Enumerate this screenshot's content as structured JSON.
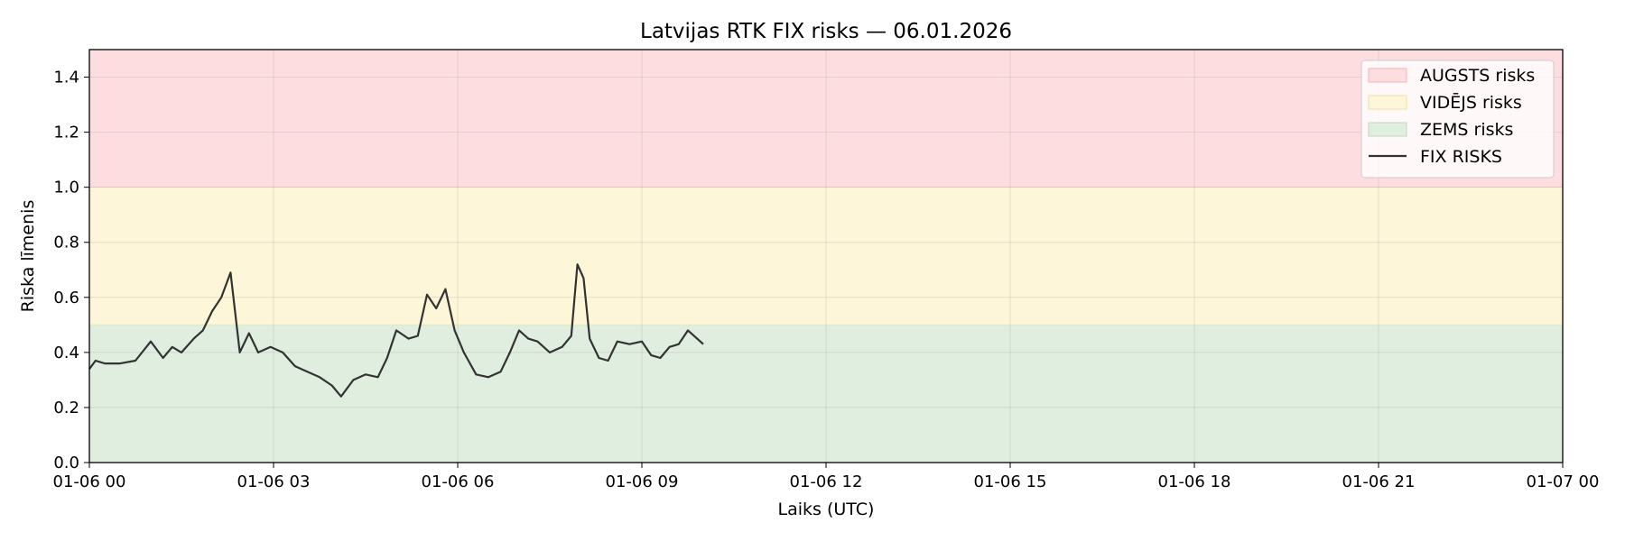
{
  "chart_data": {
    "type": "area",
    "title": "Latvijas RTK FIX risks — 06.01.2026",
    "xlabel": "Laiks (UTC)",
    "ylabel": "Riska līmenis",
    "ylim": [
      0,
      1.5
    ],
    "xlim_hours": [
      0,
      24
    ],
    "x_ticks": [
      {
        "hour": 0,
        "label": "01-06 00"
      },
      {
        "hour": 3,
        "label": "01-06 03"
      },
      {
        "hour": 6,
        "label": "01-06 06"
      },
      {
        "hour": 9,
        "label": "01-06 09"
      },
      {
        "hour": 12,
        "label": "01-06 12"
      },
      {
        "hour": 15,
        "label": "01-06 15"
      },
      {
        "hour": 18,
        "label": "01-06 18"
      },
      {
        "hour": 21,
        "label": "01-06 21"
      },
      {
        "hour": 24,
        "label": "01-07 00"
      }
    ],
    "y_ticks": [
      {
        "value": 0.0,
        "label": "0.0"
      },
      {
        "value": 0.2,
        "label": "0.2"
      },
      {
        "value": 0.4,
        "label": "0.4"
      },
      {
        "value": 0.6,
        "label": "0.6"
      },
      {
        "value": 0.8,
        "label": "0.8"
      },
      {
        "value": 1.0,
        "label": "1.0"
      },
      {
        "value": 1.2,
        "label": "1.2"
      },
      {
        "value": 1.4,
        "label": "1.4"
      }
    ],
    "grid": true,
    "legend_position": "top-right",
    "bands": [
      {
        "name": "AUGSTS risks",
        "from": 1.0,
        "to": 1.5,
        "color": "#fddde0",
        "edge": "#f2b5b9"
      },
      {
        "name": "VIDĒJS risks",
        "from": 0.5,
        "to": 1.0,
        "color": "#fef6d8",
        "edge": "#efe0a0"
      },
      {
        "name": "ZEMS risks",
        "from": 0.0,
        "to": 0.5,
        "color": "#e0eedf",
        "edge": "#bcd6bb"
      }
    ],
    "series": [
      {
        "name": "FIX RISKS",
        "color": "#333333",
        "x_hours": [
          0.0,
          0.1,
          0.25,
          0.5,
          0.75,
          1.0,
          1.2,
          1.35,
          1.5,
          1.7,
          1.85,
          2.0,
          2.15,
          2.3,
          2.45,
          2.6,
          2.75,
          2.95,
          3.15,
          3.35,
          3.55,
          3.75,
          3.95,
          4.1,
          4.3,
          4.5,
          4.7,
          4.85,
          5.0,
          5.2,
          5.35,
          5.5,
          5.65,
          5.8,
          5.95,
          6.1,
          6.3,
          6.5,
          6.7,
          6.85,
          7.0,
          7.15,
          7.3,
          7.5,
          7.7,
          7.85,
          7.95,
          8.05,
          8.15,
          8.3,
          8.45,
          8.6,
          8.8,
          9.0,
          9.15,
          9.3,
          9.45,
          9.6,
          9.75,
          9.9,
          10.0
        ],
        "values": [
          0.34,
          0.37,
          0.36,
          0.36,
          0.37,
          0.44,
          0.38,
          0.42,
          0.4,
          0.45,
          0.48,
          0.55,
          0.6,
          0.69,
          0.4,
          0.47,
          0.4,
          0.42,
          0.4,
          0.35,
          0.33,
          0.31,
          0.28,
          0.24,
          0.3,
          0.32,
          0.31,
          0.38,
          0.48,
          0.45,
          0.46,
          0.61,
          0.56,
          0.63,
          0.48,
          0.4,
          0.32,
          0.31,
          0.33,
          0.4,
          0.48,
          0.45,
          0.44,
          0.4,
          0.42,
          0.46,
          0.72,
          0.67,
          0.45,
          0.38,
          0.37,
          0.44,
          0.43,
          0.44,
          0.39,
          0.38,
          0.42,
          0.43,
          0.48,
          0.45,
          0.43
        ]
      }
    ]
  }
}
